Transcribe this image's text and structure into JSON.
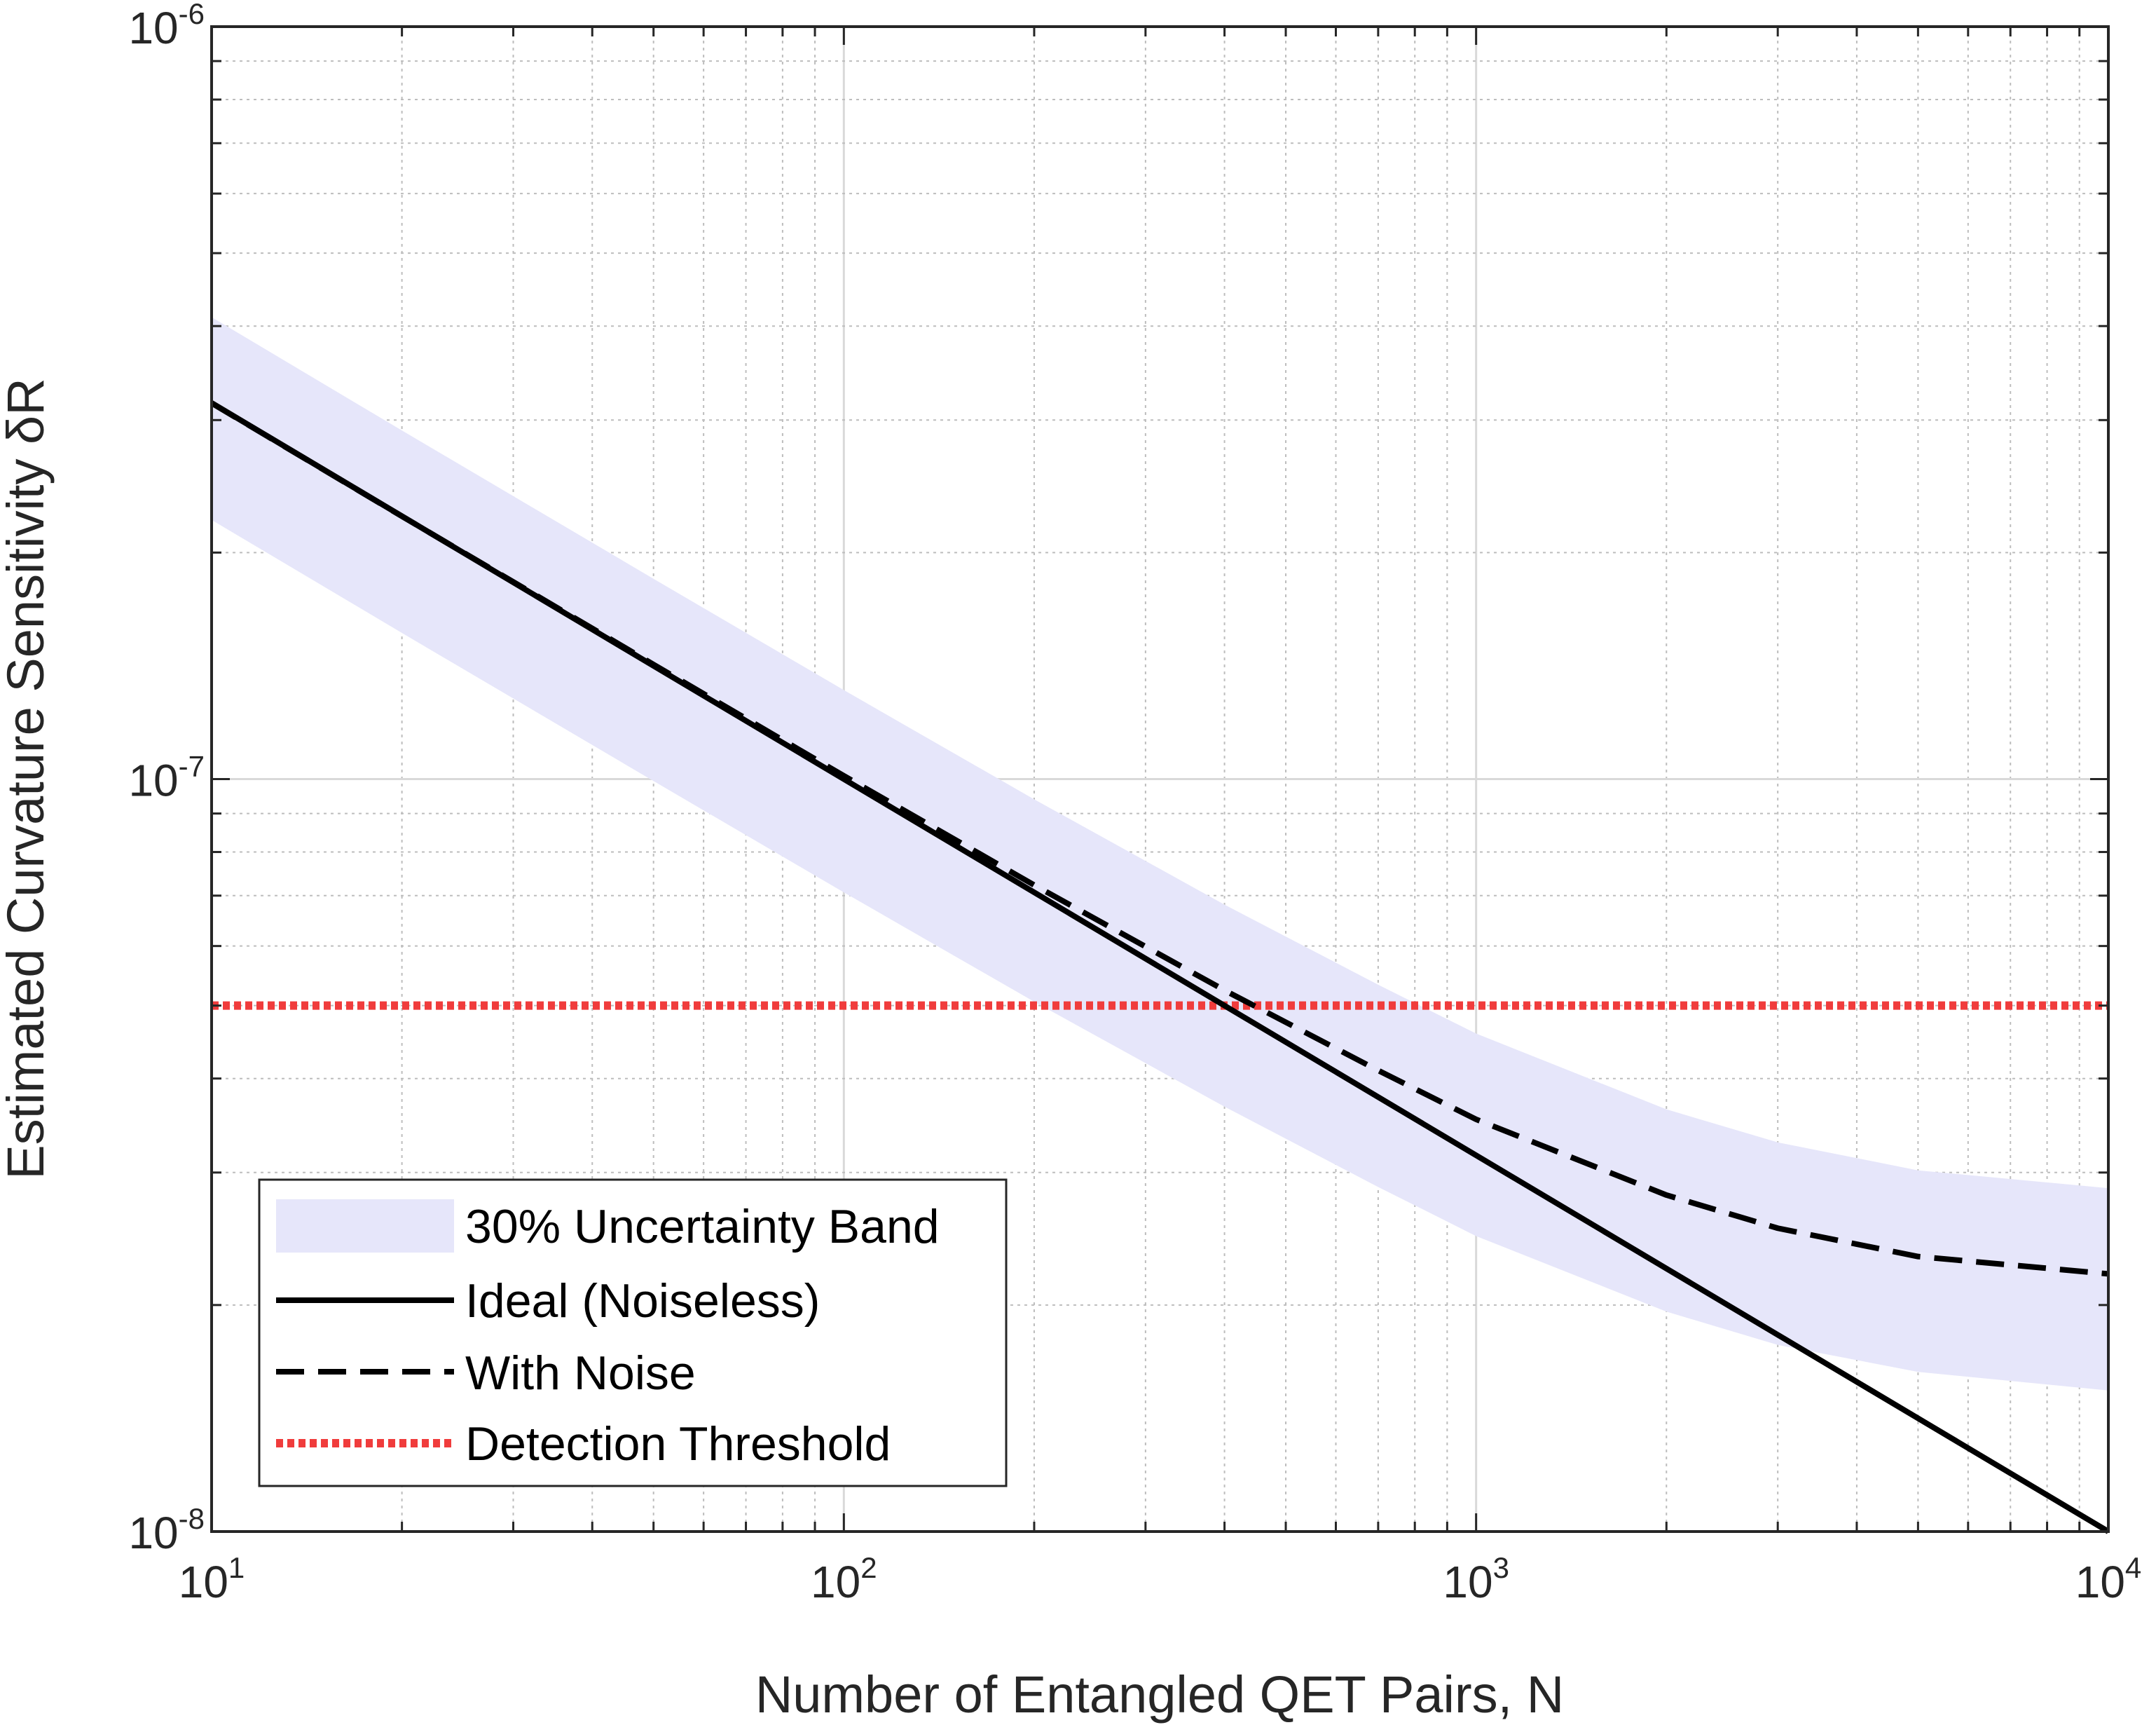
{
  "chart_data": {
    "type": "line",
    "x_scale": "log",
    "y_scale": "log",
    "xlim": [
      10,
      10000
    ],
    "ylim": [
      1e-08,
      1e-06
    ],
    "xlabel": "Number of Entangled QET Pairs, N",
    "ylabel": "Estimated Curvature Sensitivity δR",
    "x_ticks": [
      {
        "value": 10,
        "base": "10",
        "exp": "1"
      },
      {
        "value": 100,
        "base": "10",
        "exp": "2"
      },
      {
        "value": 1000,
        "base": "10",
        "exp": "3"
      },
      {
        "value": 10000,
        "base": "10",
        "exp": "4"
      }
    ],
    "y_ticks": [
      {
        "value": 1e-08,
        "base": "10",
        "exp": "-8"
      },
      {
        "value": 1e-07,
        "base": "10",
        "exp": "-7"
      },
      {
        "value": 1e-06,
        "base": "10",
        "exp": "-6"
      }
    ],
    "grid": true,
    "minor_grid": true,
    "series": [
      {
        "name": "30% Uncertainty Band",
        "style": "band",
        "color": "#e6e6fa",
        "x": [
          10,
          20,
          50,
          100,
          200,
          400,
          700,
          1000,
          2000,
          3000,
          5000,
          10000
        ],
        "lower": [
          2.21e-07,
          1.564e-07,
          9.94e-08,
          7.07e-08,
          5.06e-08,
          3.67e-08,
          2.87e-08,
          2.47e-08,
          1.96e-08,
          1.77e-08,
          1.63e-08,
          1.54e-08
        ],
        "upper": [
          4.11e-07,
          2.906e-07,
          1.846e-07,
          1.313e-07,
          9.4e-08,
          6.81e-08,
          5.33e-08,
          4.59e-08,
          3.64e-08,
          3.29e-08,
          3.02e-08,
          2.86e-08
        ]
      },
      {
        "name": "Ideal (Noiseless)",
        "style": "solid",
        "color": "#000000",
        "x": [
          10,
          10000
        ],
        "y": [
          3.162e-07,
          1e-08
        ]
      },
      {
        "name": "With Noise",
        "style": "dashed",
        "color": "#000000",
        "x": [
          10,
          20,
          50,
          100,
          200,
          400,
          700,
          1000,
          2000,
          3000,
          5000,
          10000
        ],
        "y": [
          3.16e-07,
          2.235e-07,
          1.42e-07,
          1.01e-07,
          7.23e-08,
          5.24e-08,
          4.1e-08,
          3.53e-08,
          2.8e-08,
          2.53e-08,
          2.32e-08,
          2.2e-08
        ]
      },
      {
        "name": "Detection Threshold",
        "style": "dotted",
        "color": "#f03c3c",
        "x": [
          10,
          10000
        ],
        "y": [
          5e-08,
          5e-08
        ]
      }
    ],
    "legend": {
      "position": "bottom-left",
      "entries": [
        "30% Uncertainty Band",
        "Ideal (Noiseless)",
        "With Noise",
        "Detection Threshold"
      ]
    }
  }
}
